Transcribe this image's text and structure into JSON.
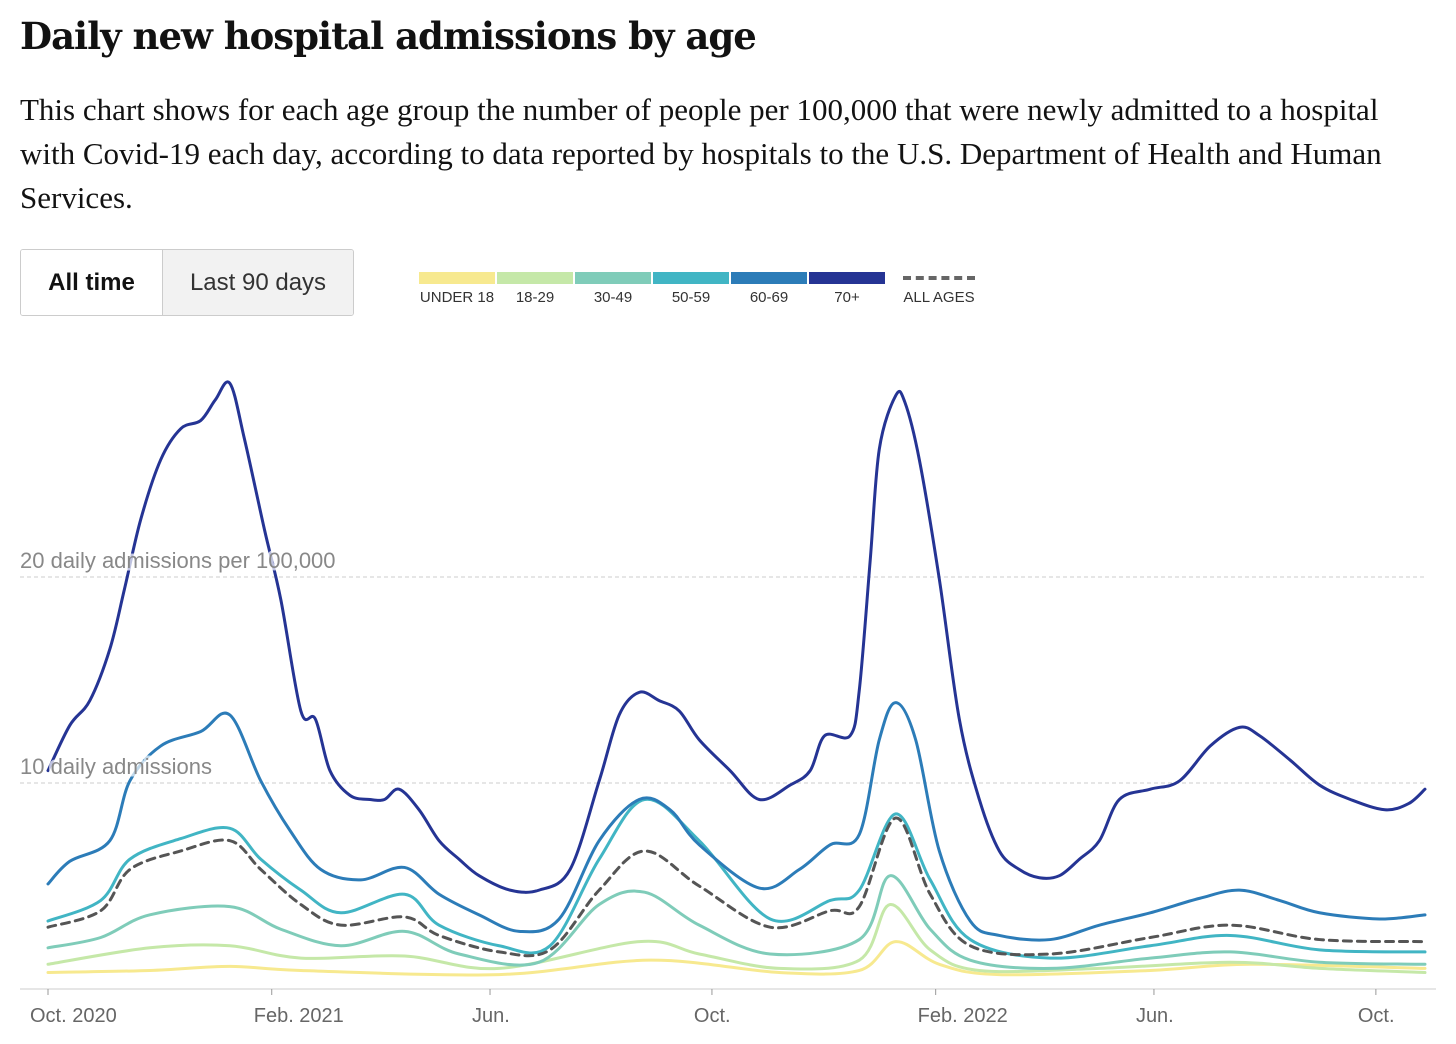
{
  "title": "Daily new hospital admissions by age",
  "description": "This chart shows for each age group the number of people per 100,000 that were newly admitted to a hospital with Covid-19 each day, according to data reported by hospitals to the U.S. Department of Health and Human Services.",
  "toggle": {
    "all_time": "All time",
    "last_90": "Last 90 days",
    "selected": "All time"
  },
  "chart_data": {
    "type": "line",
    "title": "Daily new hospital admissions by age",
    "x_unit": "days since 2020-10-01",
    "xlim": [
      0,
      757
    ],
    "ylim": [
      0,
      30
    ],
    "ylabel": "daily admissions per 100,000",
    "grid": true,
    "legend_position": "top",
    "y_ticks": [
      {
        "value": 10,
        "label": "10 daily admissions"
      },
      {
        "value": 20,
        "label": "20 daily admissions per 100,000"
      }
    ],
    "x_ticks": [
      {
        "value": 0,
        "label": "Oct. 2020"
      },
      {
        "value": 123,
        "label": "Feb. 2021"
      },
      {
        "value": 243,
        "label": "Jun."
      },
      {
        "value": 365,
        "label": "Oct."
      },
      {
        "value": 488,
        "label": "Feb. 2022"
      },
      {
        "value": 608,
        "label": "Jun."
      },
      {
        "value": 730,
        "label": "Oct."
      }
    ],
    "series": [
      {
        "name": "UNDER 18",
        "color": "#f7e98f",
        "dashed": false,
        "x": [
          0,
          56,
          100,
          139,
          248,
          331,
          402,
          446,
          466,
          490,
          523,
          606,
          661,
          757
        ],
        "y": [
          0.8,
          0.9,
          1.1,
          0.9,
          0.7,
          1.4,
          0.8,
          0.9,
          2.3,
          1.2,
          0.7,
          0.9,
          1.2,
          1.0
        ]
      },
      {
        "name": "18-29",
        "color": "#c5e8a8",
        "dashed": false,
        "x": [
          0,
          56,
          100,
          139,
          196,
          248,
          325,
          358,
          402,
          446,
          463,
          485,
          512,
          578,
          650,
          699,
          757
        ],
        "y": [
          1.2,
          2.0,
          2.1,
          1.5,
          1.6,
          1.0,
          2.3,
          1.7,
          1.0,
          1.4,
          4.1,
          1.9,
          0.9,
          1.0,
          1.3,
          1.0,
          0.8
        ]
      },
      {
        "name": "30-49",
        "color": "#7fccb9",
        "dashed": false,
        "x": [
          0,
          29,
          56,
          100,
          128,
          161,
          196,
          226,
          270,
          303,
          328,
          358,
          397,
          446,
          463,
          485,
          507,
          551,
          606,
          650,
          699,
          757
        ],
        "y": [
          2.0,
          2.5,
          3.6,
          4.0,
          2.9,
          2.1,
          2.8,
          1.7,
          1.3,
          4.1,
          4.7,
          3.1,
          1.7,
          2.4,
          5.5,
          2.9,
          1.4,
          1.0,
          1.5,
          1.8,
          1.3,
          1.2
        ]
      },
      {
        "name": "50-59",
        "color": "#41b5c4",
        "dashed": false,
        "x": [
          0,
          29,
          45,
          73,
          100,
          117,
          139,
          161,
          196,
          215,
          248,
          276,
          303,
          328,
          358,
          397,
          430,
          446,
          466,
          485,
          507,
          551,
          606,
          650,
          699,
          757
        ],
        "y": [
          3.3,
          4.3,
          6.3,
          7.3,
          7.8,
          6.3,
          4.8,
          3.7,
          4.6,
          3.1,
          2.1,
          2.1,
          6.3,
          9.2,
          7.2,
          3.4,
          4.3,
          4.8,
          8.5,
          5.3,
          2.4,
          1.5,
          2.1,
          2.6,
          1.9,
          1.8
        ]
      },
      {
        "name": "60-69",
        "color": "#2c7cb8",
        "dashed": false,
        "x": [
          0,
          12,
          34,
          45,
          62,
          84,
          100,
          117,
          133,
          150,
          172,
          196,
          215,
          237,
          259,
          281,
          303,
          325,
          342,
          358,
          391,
          413,
          430,
          446,
          457,
          466,
          477,
          490,
          507,
          523,
          551,
          578,
          606,
          633,
          655,
          677,
          699,
          732,
          757
        ],
        "y": [
          5.1,
          6.2,
          7.2,
          10.1,
          11.8,
          12.5,
          13.3,
          10.1,
          7.7,
          5.8,
          5.3,
          5.9,
          4.6,
          3.6,
          2.8,
          3.4,
          7.2,
          9.2,
          8.7,
          7.0,
          4.9,
          5.8,
          7.0,
          7.5,
          12.1,
          13.9,
          12.1,
          6.7,
          3.3,
          2.6,
          2.4,
          3.1,
          3.7,
          4.4,
          4.8,
          4.3,
          3.7,
          3.4,
          3.6
        ]
      },
      {
        "name": "70+",
        "color": "#253494",
        "dashed": false,
        "x": [
          0,
          12,
          23,
          34,
          42,
          51,
          62,
          73,
          84,
          92,
          100,
          108,
          119,
          128,
          139,
          147,
          155,
          166,
          177,
          185,
          193,
          204,
          215,
          226,
          237,
          254,
          270,
          287,
          303,
          314,
          325,
          336,
          347,
          358,
          375,
          391,
          408,
          419,
          427,
          441,
          446,
          452,
          457,
          466,
          471,
          479,
          490,
          501,
          512,
          523,
          534,
          545,
          556,
          567,
          578,
          589,
          606,
          622,
          639,
          655,
          666,
          683,
          699,
          716,
          735,
          748,
          757
        ],
        "y": [
          10.6,
          12.8,
          14.0,
          16.5,
          19.4,
          22.8,
          25.7,
          27.2,
          27.6,
          28.6,
          29.4,
          26.7,
          22.3,
          18.9,
          13.5,
          13.1,
          10.6,
          9.4,
          9.2,
          9.2,
          9.7,
          8.7,
          7.2,
          6.3,
          5.5,
          4.8,
          4.8,
          5.8,
          10.1,
          13.3,
          14.4,
          14.0,
          13.5,
          12.1,
          10.6,
          9.2,
          9.9,
          10.6,
          12.3,
          12.3,
          14.5,
          20.8,
          26.2,
          28.8,
          28.5,
          25.7,
          19.9,
          13.1,
          9.2,
          6.7,
          5.8,
          5.4,
          5.5,
          6.3,
          7.2,
          9.2,
          9.7,
          10.1,
          11.8,
          12.7,
          12.3,
          11.1,
          9.9,
          9.2,
          8.7,
          9.0,
          9.7
        ]
      },
      {
        "name": "ALL AGES",
        "color": "#555555",
        "dashed": true,
        "x": [
          0,
          29,
          45,
          73,
          100,
          117,
          139,
          161,
          196,
          215,
          248,
          276,
          303,
          328,
          358,
          397,
          430,
          446,
          466,
          485,
          507,
          551,
          606,
          650,
          699,
          757
        ],
        "y": [
          3.0,
          3.8,
          5.8,
          6.7,
          7.2,
          5.8,
          4.1,
          3.1,
          3.5,
          2.6,
          1.8,
          1.9,
          4.8,
          6.7,
          5.0,
          3.0,
          3.8,
          4.0,
          8.3,
          4.6,
          2.1,
          1.7,
          2.5,
          3.1,
          2.4,
          2.3
        ]
      }
    ]
  }
}
